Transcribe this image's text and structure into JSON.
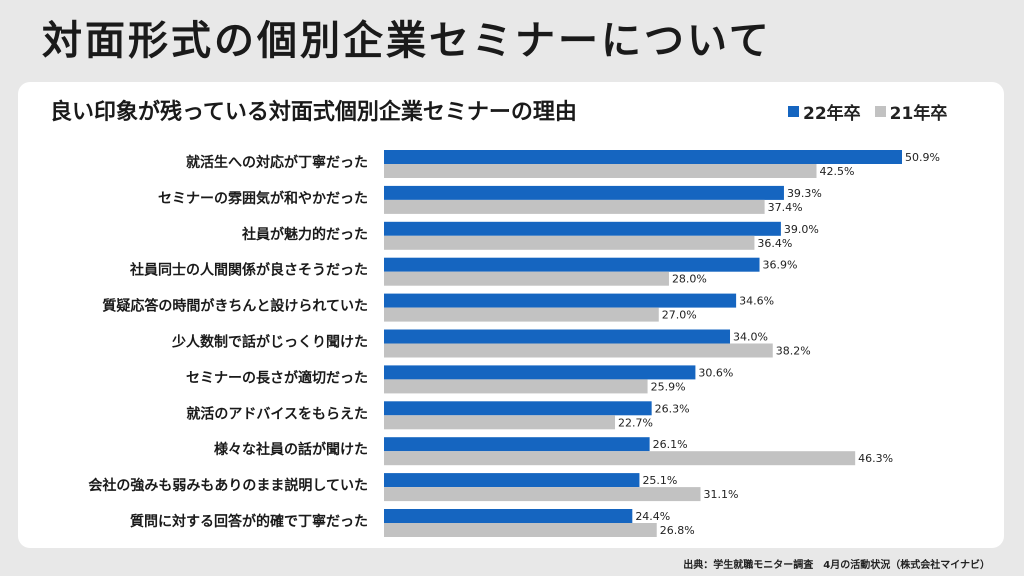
{
  "page": {
    "title": "対面形式の個別企業セミナーについて",
    "source": "出典：学生就職モニター調査　4月の活動状況（株式会社マイナビ）"
  },
  "colors": {
    "series_22": "#1565c0",
    "series_21": "#c2c2c2"
  },
  "chart_data": {
    "type": "bar",
    "orientation": "horizontal",
    "title": "良い印象が残っている対面式個別企業セミナーの理由",
    "legend_position": "top-right",
    "categories": [
      "就活生への対応が丁寧だった",
      "セミナーの雰囲気が和やかだった",
      "社員が魅力的だった",
      "社員同士の人間関係が良さそうだった",
      "質疑応答の時間がきちんと設けられていた",
      "少人数制で話がじっくり聞けた",
      "セミナーの長さが適切だった",
      "就活のアドバイスをもらえた",
      "様々な社員の話が聞けた",
      "会社の強みも弱みもありのまま説明していた",
      "質問に対する回答が的確で丁寧だった"
    ],
    "series": [
      {
        "name": "22年卒",
        "values": [
          50.9,
          39.3,
          39.0,
          36.9,
          34.6,
          34.0,
          30.6,
          26.3,
          26.1,
          25.1,
          24.4
        ]
      },
      {
        "name": "21年卒",
        "values": [
          42.5,
          37.4,
          36.4,
          28.0,
          27.0,
          38.2,
          25.9,
          22.7,
          46.3,
          31.1,
          26.8
        ]
      }
    ],
    "value_suffix": "%",
    "xlim": [
      0,
      55
    ],
    "grid": false
  }
}
